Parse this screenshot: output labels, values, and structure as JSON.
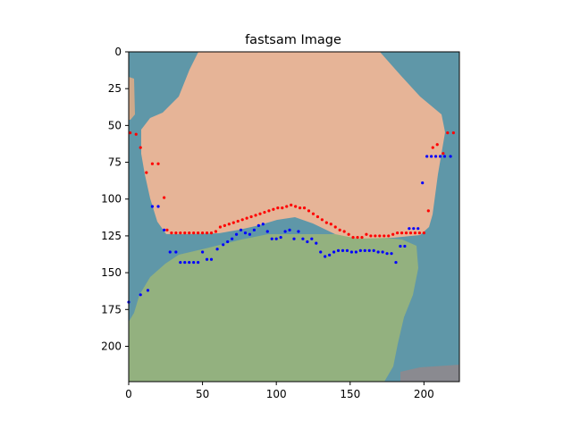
{
  "chart_data": {
    "type": "scatter",
    "title": "fastsam Image",
    "image_size": [
      224,
      224
    ],
    "xlim": [
      0,
      224
    ],
    "ylim": [
      224,
      0
    ],
    "x_ticks": [
      0,
      50,
      100,
      150,
      200
    ],
    "y_ticks": [
      0,
      25,
      50,
      75,
      100,
      125,
      150,
      175,
      200
    ],
    "grid": false,
    "background_image": {
      "description": "segmentation overlay",
      "regions": [
        {
          "name": "background",
          "color": "#5f97a8"
        },
        {
          "name": "upper-mask",
          "color": "#e6b497"
        },
        {
          "name": "lower-mask",
          "color": "#93b17f"
        },
        {
          "name": "left-edge",
          "color": "#cfa98a"
        },
        {
          "name": "corner",
          "color": "#8a8a90"
        }
      ]
    },
    "series": [
      {
        "color": "#ff0000",
        "x": [
          1,
          5,
          8,
          12,
          16,
          20,
          24,
          26,
          29,
          32,
          35,
          38,
          41,
          44,
          47,
          50,
          53,
          56,
          59,
          62,
          65,
          68,
          71,
          74,
          77,
          80,
          83,
          86,
          89,
          92,
          95,
          98,
          101,
          104,
          107,
          110,
          113,
          116,
          119,
          122,
          125,
          128,
          131,
          134,
          137,
          140,
          143,
          146,
          149,
          152,
          155,
          158,
          161,
          164,
          167,
          170,
          173,
          176,
          179,
          182,
          185,
          188,
          191,
          194,
          197,
          200,
          203,
          206,
          209,
          213,
          216,
          220
        ],
        "y": [
          55,
          56,
          65,
          82,
          76,
          76,
          99,
          121,
          123,
          123,
          123,
          123,
          123,
          123,
          123,
          123,
          123,
          123,
          122,
          119,
          118,
          117,
          116,
          115,
          114,
          113,
          112,
          111,
          110,
          109,
          108,
          107,
          106,
          106,
          105,
          104,
          105,
          106,
          106,
          108,
          110,
          112,
          114,
          116,
          117,
          119,
          121,
          122,
          124,
          126,
          126,
          126,
          124,
          125,
          125,
          125,
          125,
          125,
          124,
          123,
          123,
          123,
          123,
          123,
          123,
          123,
          108,
          65,
          63,
          69,
          55,
          55
        ]
      },
      {
        "color": "#0000ff",
        "x": [
          0,
          8,
          13,
          16,
          20,
          24,
          28,
          32,
          35,
          38,
          41,
          44,
          47,
          50,
          53,
          56,
          60,
          64,
          67,
          70,
          73,
          76,
          79,
          82,
          85,
          88,
          91,
          94,
          97,
          100,
          103,
          106,
          109,
          112,
          115,
          118,
          121,
          124,
          127,
          130,
          133,
          136,
          139,
          142,
          145,
          148,
          151,
          154,
          157,
          160,
          163,
          166,
          169,
          172,
          175,
          178,
          181,
          184,
          187,
          190,
          193,
          196,
          199,
          202,
          205,
          208,
          211,
          214,
          218
        ],
        "y": [
          170,
          165,
          162,
          105,
          105,
          121,
          136,
          136,
          143,
          143,
          143,
          143,
          143,
          136,
          141,
          141,
          134,
          131,
          129,
          127,
          124,
          121,
          123,
          124,
          121,
          118,
          117,
          122,
          127,
          127,
          126,
          122,
          121,
          127,
          122,
          127,
          129,
          127,
          130,
          136,
          139,
          138,
          136,
          135,
          135,
          135,
          136,
          136,
          135,
          135,
          135,
          135,
          136,
          136,
          137,
          137,
          143,
          132,
          132,
          120,
          120,
          120,
          89,
          71,
          71,
          71,
          71,
          71,
          71
        ]
      }
    ]
  }
}
